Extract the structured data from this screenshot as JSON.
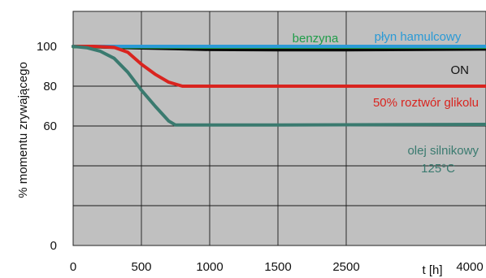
{
  "chart_data": {
    "type": "line",
    "ylabel": "% momentu zrywającego",
    "xlabel": "t [h]",
    "ylim": [
      0,
      105
    ],
    "yticks": [
      0,
      20,
      40,
      60,
      80,
      100
    ],
    "ytick_labels": [
      "0",
      "",
      "",
      "60",
      "80",
      "100"
    ],
    "xticks": [
      0,
      500,
      1000,
      1500,
      2500,
      4000
    ],
    "xtick_labels": [
      "0",
      "500",
      "1000",
      "1500",
      "2500",
      "4000"
    ],
    "grid": true,
    "background": "#c0c0c0",
    "series": [
      {
        "name": "benzyna",
        "color": "#1f9d49",
        "label_color": "#1f9d49",
        "x": [
          0,
          500,
          1000,
          1500,
          2500,
          4000
        ],
        "y": [
          99.8,
          99.7,
          99.6,
          99.6,
          99.6,
          99.6
        ]
      },
      {
        "name": "płyn hamulcowy",
        "color": "#2a9ad6",
        "label_color": "#2a9ad6",
        "x": [
          0,
          500,
          1000,
          1500,
          2500,
          4000
        ],
        "y": [
          100,
          100,
          100,
          100,
          100,
          100
        ]
      },
      {
        "name": "ON",
        "color": "#0a0a0a",
        "label_color": "#111111",
        "x": [
          0,
          250,
          500,
          750,
          1000,
          1500,
          2500,
          4000
        ],
        "y": [
          100,
          99.6,
          99.2,
          98.8,
          98.4,
          98.3,
          98.3,
          98.6
        ]
      },
      {
        "name": "50% roztwór glikolu",
        "color": "#d9241f",
        "label_color": "#d9241f",
        "x": [
          0,
          150,
          300,
          400,
          500,
          600,
          700,
          800,
          1000,
          1500,
          2500,
          4000
        ],
        "y": [
          100,
          100,
          99.5,
          97,
          91,
          86,
          82,
          80,
          80,
          80,
          80,
          80
        ]
      },
      {
        "name": "olej silnikowy",
        "name2": "125°C",
        "color": "#3a7a6f",
        "label_color": "#3a7a6f",
        "x": [
          0,
          100,
          200,
          300,
          400,
          500,
          600,
          700,
          750,
          1000,
          1500,
          2500,
          4000
        ],
        "y": [
          100,
          99.3,
          97.5,
          94,
          87,
          78,
          70,
          62.5,
          60.5,
          60.5,
          60.5,
          60.6,
          60.8
        ]
      }
    ]
  }
}
